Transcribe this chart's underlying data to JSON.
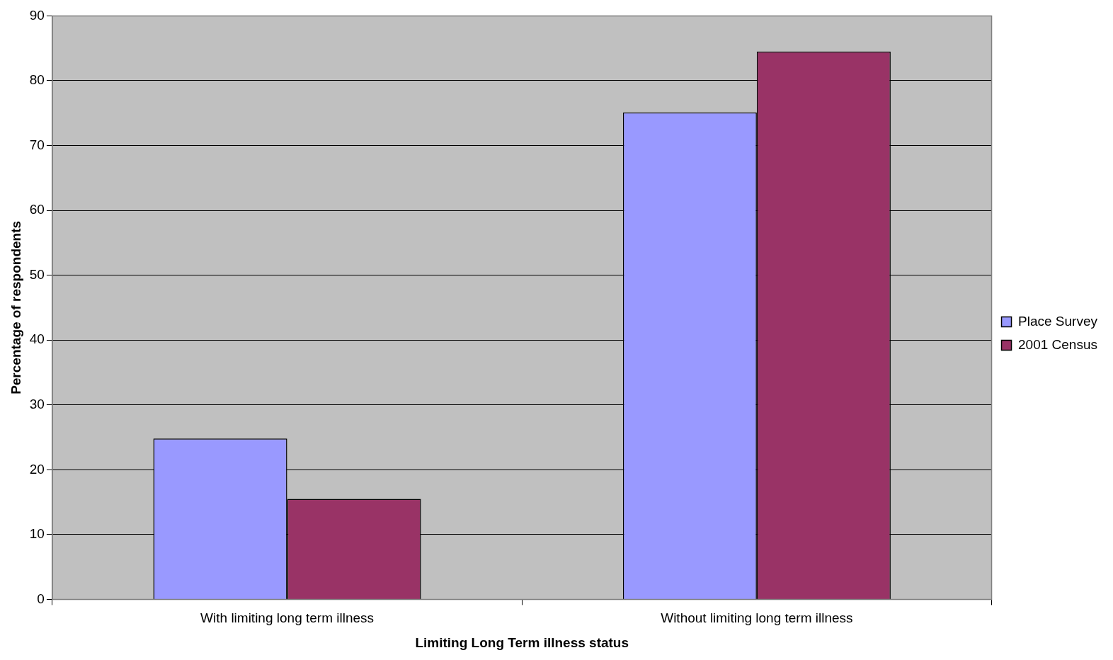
{
  "chart_data": {
    "type": "bar",
    "xlabel": "Limiting Long Term illness status",
    "ylabel": "Percentage of respondents",
    "categories": [
      "With limiting long term illness",
      "Without limiting long term illness"
    ],
    "series": [
      {
        "name": "Place Survey",
        "color": "#9999ff",
        "values": [
          24.8,
          75.1
        ]
      },
      {
        "name": "2001 Census",
        "color": "#993366",
        "values": [
          15.5,
          84.5
        ]
      }
    ],
    "ylim": [
      0,
      90
    ],
    "yticks": [
      0,
      10,
      20,
      30,
      40,
      50,
      60,
      70,
      80,
      90
    ],
    "grid": "y",
    "legend": "right"
  }
}
